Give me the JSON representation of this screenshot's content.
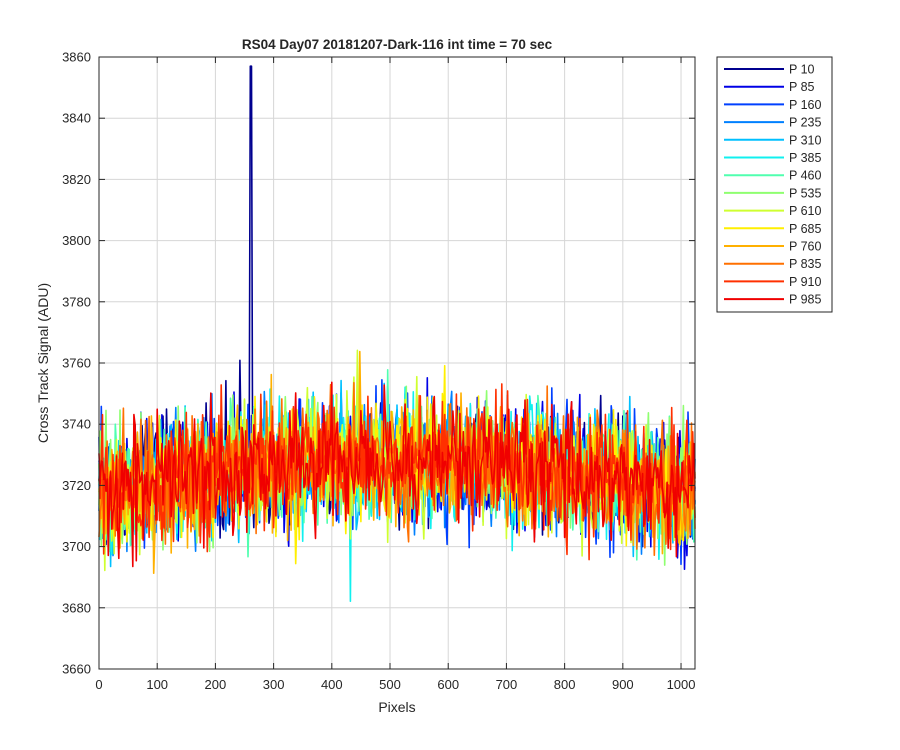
{
  "chart_data": {
    "type": "line",
    "title": "RS04 Day07 20181207-Dark-116 int time = 70 sec",
    "xlabel": "Pixels",
    "ylabel": "Cross Track Signal (ADU)",
    "xlim": [
      0,
      1024
    ],
    "ylim": [
      3660,
      3860
    ],
    "x_ticks": [
      0,
      100,
      200,
      300,
      400,
      500,
      600,
      700,
      800,
      900,
      1000
    ],
    "y_ticks": [
      3660,
      3680,
      3700,
      3720,
      3740,
      3760,
      3780,
      3800,
      3820,
      3840,
      3860
    ],
    "grid": true,
    "legend_position": "outside-top-right",
    "spike": {
      "series": "P 10",
      "x": 261,
      "y": 3857
    },
    "series": [
      {
        "name": "P 10",
        "color": "#00008f"
      },
      {
        "name": "P 85",
        "color": "#0000e6"
      },
      {
        "name": "P 160",
        "color": "#0040ff"
      },
      {
        "name": "P 235",
        "color": "#0080ff"
      },
      {
        "name": "P 310",
        "color": "#00c0ff"
      },
      {
        "name": "P 385",
        "color": "#10f0ef"
      },
      {
        "name": "P 460",
        "color": "#50ffaf"
      },
      {
        "name": "P 535",
        "color": "#8fff70"
      },
      {
        "name": "P 610",
        "color": "#cfff30"
      },
      {
        "name": "P 685",
        "color": "#ffef00"
      },
      {
        "name": "P 760",
        "color": "#ffb000"
      },
      {
        "name": "P 835",
        "color": "#ff7000"
      },
      {
        "name": "P 910",
        "color": "#ff3000"
      },
      {
        "name": "P 985",
        "color": "#f00000"
      }
    ]
  }
}
